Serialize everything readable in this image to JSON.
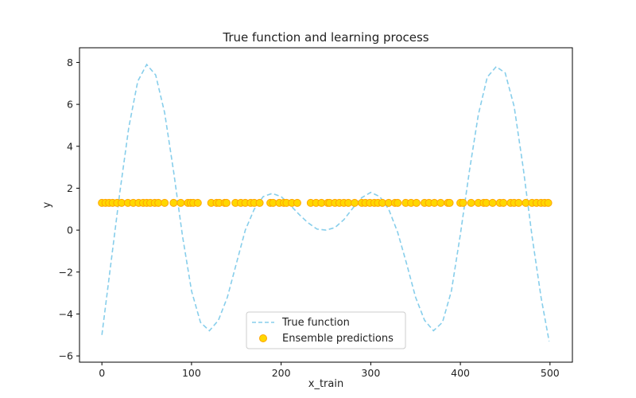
{
  "chart_data": {
    "type": "line",
    "title": "True function and learning process",
    "xlabel": "x_train",
    "ylabel": "y",
    "xlim": [
      -25,
      525
    ],
    "ylim": [
      -6.3,
      8.7
    ],
    "xticks": [
      0,
      100,
      200,
      300,
      400,
      500
    ],
    "yticks": [
      -6,
      -4,
      -2,
      0,
      2,
      4,
      6,
      8
    ],
    "grid": false,
    "legend_position": "lower center",
    "colors": {
      "true_function": "#87CEEB",
      "ensemble_fill": "#FFD700",
      "ensemble_edge": "#FFA500"
    },
    "series": [
      {
        "name": "True function",
        "style": "dashed",
        "x": [
          0,
          10,
          20,
          30,
          40,
          50,
          60,
          70,
          80,
          90,
          100,
          110,
          120,
          130,
          140,
          150,
          160,
          170,
          180,
          190,
          200,
          210,
          220,
          230,
          240,
          250,
          260,
          270,
          280,
          290,
          300,
          310,
          320,
          330,
          340,
          350,
          360,
          370,
          380,
          390,
          400,
          410,
          420,
          430,
          440,
          450,
          460,
          470,
          480,
          490,
          499
        ],
        "y": [
          -5.0,
          -1.6,
          1.8,
          4.9,
          7.1,
          7.9,
          7.4,
          5.6,
          2.8,
          -0.3,
          -2.9,
          -4.4,
          -4.8,
          -4.3,
          -3.2,
          -1.6,
          0.0,
          1.0,
          1.6,
          1.75,
          1.6,
          1.2,
          0.75,
          0.35,
          0.05,
          0.0,
          0.12,
          0.5,
          1.05,
          1.55,
          1.8,
          1.6,
          1.0,
          -0.1,
          -1.6,
          -3.2,
          -4.3,
          -4.8,
          -4.4,
          -2.9,
          -0.2,
          2.8,
          5.5,
          7.3,
          7.8,
          7.5,
          5.9,
          3.0,
          -0.3,
          -3.2,
          -5.3
        ]
      },
      {
        "name": "Ensemble predictions",
        "type": "scatter",
        "x": [
          0,
          4,
          8,
          12,
          17,
          22,
          29,
          35,
          41,
          46,
          50,
          54,
          59,
          63,
          70,
          80,
          88,
          96,
          99,
          102,
          107,
          122,
          128,
          131,
          137,
          139,
          149,
          155,
          160,
          166,
          170,
          176,
          188,
          191,
          198,
          203,
          206,
          212,
          218,
          233,
          239,
          245,
          252,
          254,
          260,
          265,
          270,
          275,
          282,
          290,
          294,
          299,
          304,
          308,
          313,
          320,
          327,
          330,
          339,
          345,
          351,
          360,
          365,
          371,
          378,
          386,
          388,
          400,
          403,
          412,
          420,
          426,
          429,
          436,
          444,
          448,
          456,
          460,
          465,
          473,
          480,
          485,
          490,
          494,
          498
        ],
        "y": [
          1.3,
          1.3,
          1.3,
          1.3,
          1.3,
          1.3,
          1.3,
          1.3,
          1.3,
          1.3,
          1.3,
          1.3,
          1.3,
          1.3,
          1.3,
          1.3,
          1.3,
          1.3,
          1.3,
          1.3,
          1.3,
          1.3,
          1.3,
          1.3,
          1.3,
          1.3,
          1.3,
          1.3,
          1.3,
          1.3,
          1.3,
          1.3,
          1.3,
          1.3,
          1.3,
          1.3,
          1.3,
          1.3,
          1.3,
          1.3,
          1.3,
          1.3,
          1.3,
          1.3,
          1.3,
          1.3,
          1.3,
          1.3,
          1.3,
          1.3,
          1.3,
          1.3,
          1.3,
          1.3,
          1.3,
          1.3,
          1.3,
          1.3,
          1.3,
          1.3,
          1.3,
          1.3,
          1.3,
          1.3,
          1.3,
          1.3,
          1.3,
          1.3,
          1.3,
          1.3,
          1.3,
          1.3,
          1.3,
          1.3,
          1.3,
          1.3,
          1.3,
          1.3,
          1.3,
          1.3,
          1.3,
          1.3,
          1.3,
          1.3,
          1.3
        ]
      }
    ]
  }
}
